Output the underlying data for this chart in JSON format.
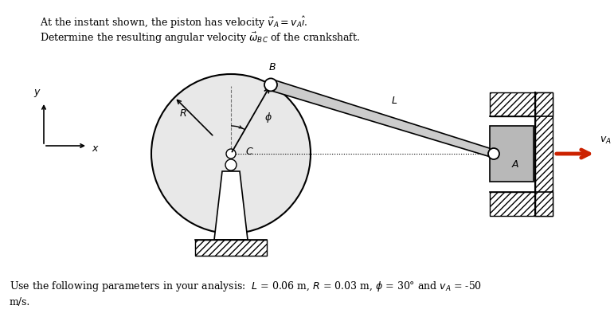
{
  "bg_color": "#ffffff",
  "circle_fill": "#e8e8e8",
  "circle_edge": "#000000",
  "piston_fill": "#b8b8b8",
  "rod_fill": "#cccccc",
  "rod_edge": "#000000",
  "arrow_color": "#cc2200",
  "phi_deg": 30,
  "text_line1": "At the instant shown, the piston has velocity $\\vec{v}_A = v_A\\hat{\\imath}$.",
  "text_line2": "Determine the resulting angular velocity $\\vec{\\omega}_{BC}$ of the crankshaft.",
  "footer1": "Use the following parameters in your analysis:  $L$ = 0.06 m, $R$ = 0.03 m, $\\phi$ = 30° and $v_A$ = -50",
  "footer2": "m/s."
}
